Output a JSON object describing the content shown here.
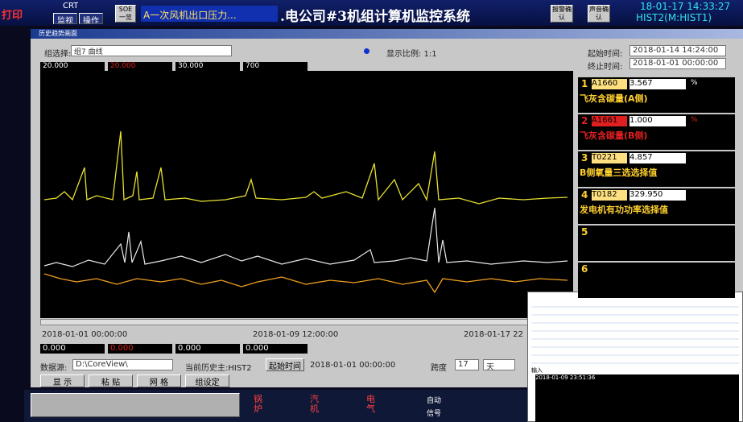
{
  "topbar": {
    "print": "打印",
    "crt": "CRT",
    "monitor": "监视",
    "operate": "操作",
    "soe": "SOE一览",
    "alarm_text": "A一次风机出口压力...",
    "system_title": ".电公司#3机组计算机监控系统",
    "ack_alarm": "报警确认",
    "ack_sound": "声音确认",
    "datetime": "18-01-17 14:33:27",
    "server": "HIST2(M:HIST1)"
  },
  "window": {
    "title": "历史趋势画面",
    "group_label": "组选择:",
    "group_value": "组7 曲线",
    "ratio": "显示比例: 1:1",
    "start_label": "起始时间:",
    "start_value": "2018-01-14 14:24:00",
    "end_label": "终止时间:",
    "end_value": "2018-01-01 00:00:00",
    "scales": [
      "20.000",
      "20.000",
      "30.000",
      "700"
    ],
    "time_axis": [
      "2018-01-01 00:00:00",
      "2018-01-09 12:00:00",
      "2018-01-17 22"
    ],
    "mins": [
      "0.000",
      "0.000",
      "0.000",
      "0.000"
    ],
    "source_label": "数据源:",
    "source_value": "D:\\CoreView\\",
    "hist_label": "当前历史主:HIST2",
    "begin_button": "起始时间",
    "begin_value": "2018-01-01 00:00:00",
    "span_label": "跨度",
    "span_value": "17",
    "span_unit": "天",
    "buttons": [
      "显 示",
      "粘 贴",
      "网 格",
      "组设定"
    ]
  },
  "points": [
    {
      "no": "1",
      "tag": "A1660",
      "value": "3.567",
      "unit": "%",
      "desc": "飞灰含碳量(A侧)"
    },
    {
      "no": "2",
      "tag": "A1661",
      "value": "1.000",
      "unit": "%",
      "desc": "飞灰含碳量(B侧)"
    },
    {
      "no": "3",
      "tag": "T0221",
      "value": "4.857",
      "desc": "B侧氧量三选选择值"
    },
    {
      "no": "4",
      "tag": "T0182",
      "value": "329.950",
      "desc": "发电机有功功率选择值"
    },
    {
      "no": "5"
    },
    {
      "no": "6"
    }
  ],
  "bottombar": {
    "boiler": "锅炉",
    "turbine": "汽机",
    "electric": "电气",
    "auto": "自动",
    "signal": "信号"
  },
  "overlay": {
    "input": "输入",
    "time": "2018-01-09 23:51:36"
  }
}
